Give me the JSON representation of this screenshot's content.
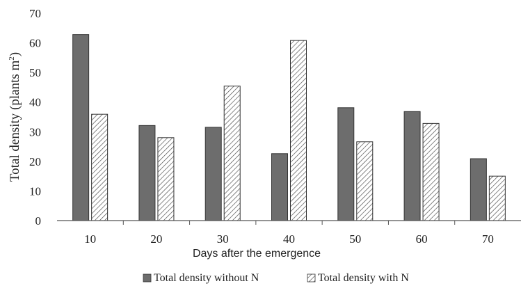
{
  "chart_data": {
    "type": "bar",
    "categories": [
      "10",
      "20",
      "30",
      "40",
      "50",
      "60",
      "70"
    ],
    "series": [
      {
        "name": "Total density without N",
        "values": [
          62.8,
          32.1,
          31.5,
          22.6,
          38.1,
          36.8,
          20.9
        ],
        "color": "#6d6d6d",
        "pattern": "solid"
      },
      {
        "name": "Total density with N",
        "values": [
          35.9,
          28.0,
          45.4,
          60.8,
          26.6,
          32.8,
          15.0
        ],
        "color": "#ffffff",
        "pattern": "diagonal-hatch"
      }
    ],
    "title": "",
    "xlabel": "Days after the emergence",
    "ylabel": "Total density (plants m",
    "ylabel_superscript": "2",
    "ylabel_close": ")",
    "ylim": [
      0,
      70
    ],
    "yticks": [
      0,
      10,
      20,
      30,
      40,
      50,
      60,
      70
    ],
    "grid": false,
    "legend_position": "bottom"
  }
}
